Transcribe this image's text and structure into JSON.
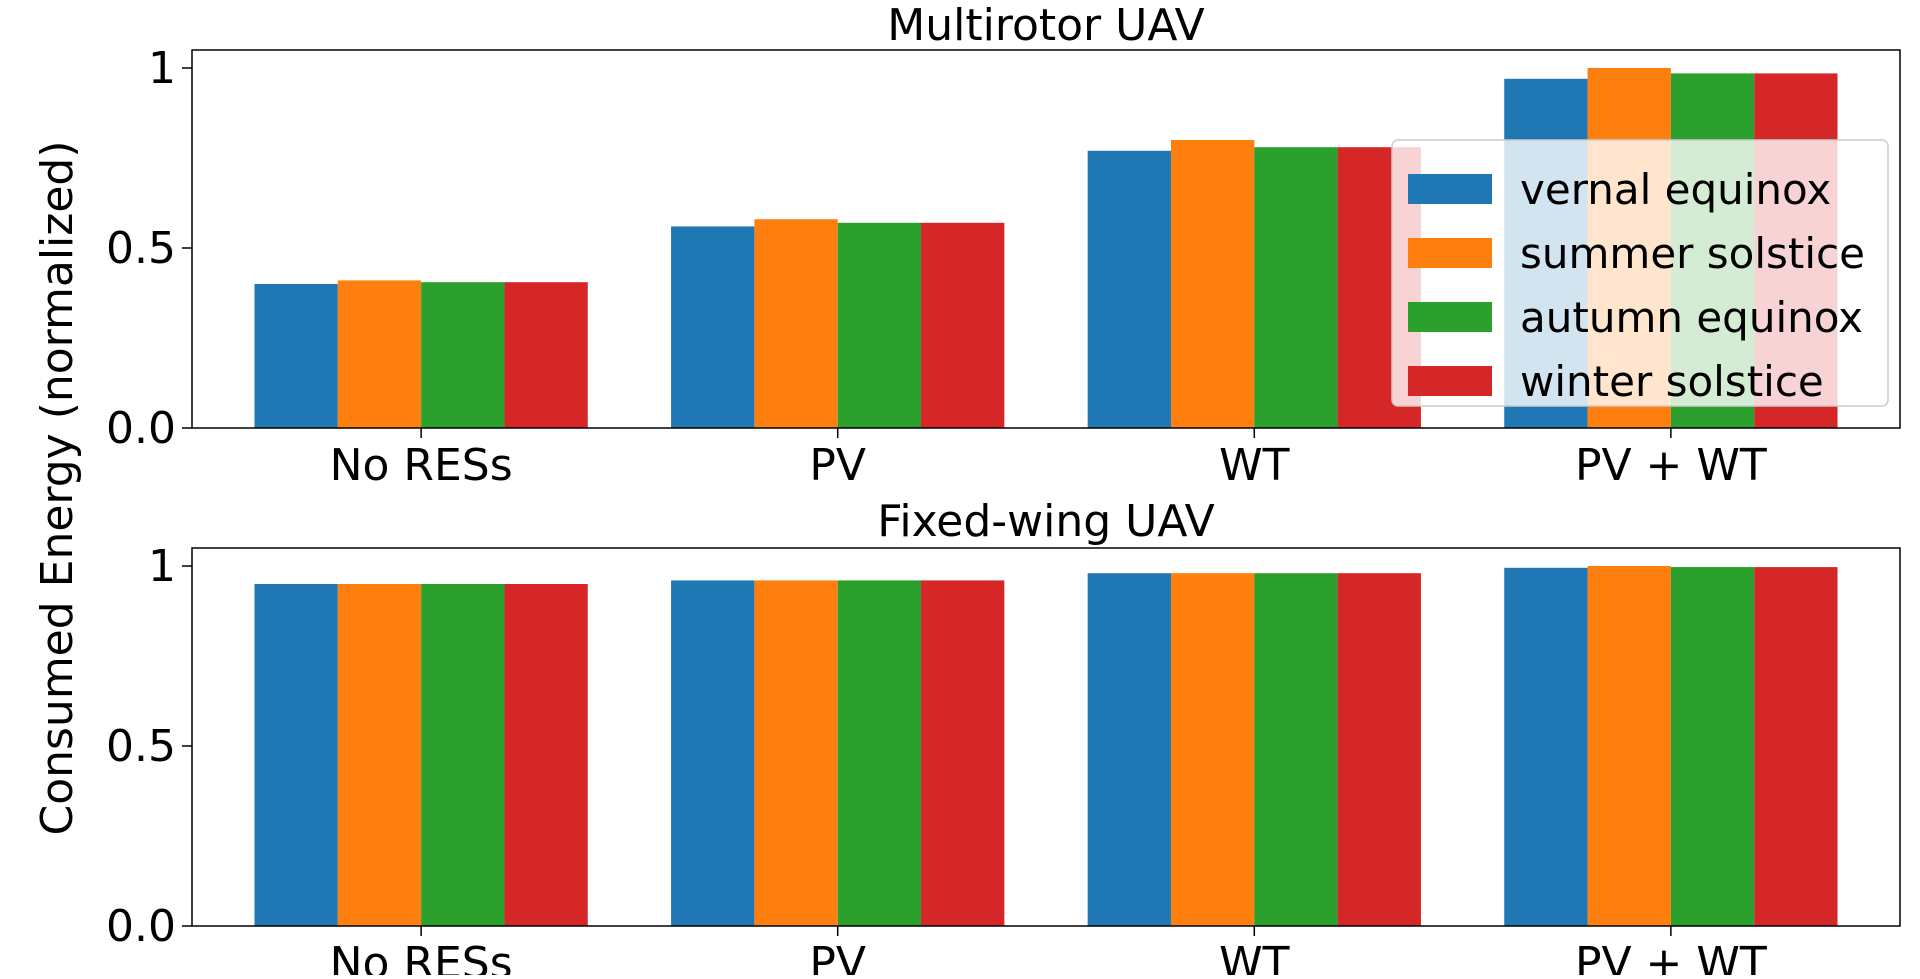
{
  "ylabel": "Consumed Energy (normalized)",
  "legend": [
    "vernal equinox",
    "summer solstice",
    "autumn equinox",
    "winter solstice"
  ],
  "colors": [
    "#1f77b4",
    "#ff7f0e",
    "#2ca02c",
    "#d62728"
  ],
  "chart_data": [
    {
      "type": "bar",
      "title": "Multirotor UAV",
      "categories": [
        "No RESs",
        "PV",
        "WT",
        "PV + WT"
      ],
      "ylim": [
        0,
        1.05
      ],
      "yticks": [
        "0.0",
        "0.5",
        "1"
      ],
      "legend_position": "right",
      "series": [
        {
          "name": "vernal equinox",
          "values": [
            0.4,
            0.56,
            0.77,
            0.97
          ]
        },
        {
          "name": "summer solstice",
          "values": [
            0.41,
            0.58,
            0.8,
            1.0
          ]
        },
        {
          "name": "autumn equinox",
          "values": [
            0.405,
            0.57,
            0.78,
            0.985
          ]
        },
        {
          "name": "winter solstice",
          "values": [
            0.405,
            0.57,
            0.78,
            0.985
          ]
        }
      ]
    },
    {
      "type": "bar",
      "title": "Fixed-wing UAV",
      "categories": [
        "No RESs",
        "PV",
        "WT",
        "PV + WT"
      ],
      "ylim": [
        0,
        1.05
      ],
      "yticks": [
        "0.0",
        "0.5",
        "1"
      ],
      "series": [
        {
          "name": "vernal equinox",
          "values": [
            0.95,
            0.96,
            0.98,
            0.995
          ]
        },
        {
          "name": "summer solstice",
          "values": [
            0.95,
            0.96,
            0.98,
            1.0
          ]
        },
        {
          "name": "autumn equinox",
          "values": [
            0.95,
            0.96,
            0.98,
            0.997
          ]
        },
        {
          "name": "winter solstice",
          "values": [
            0.95,
            0.96,
            0.98,
            0.997
          ]
        }
      ]
    }
  ]
}
